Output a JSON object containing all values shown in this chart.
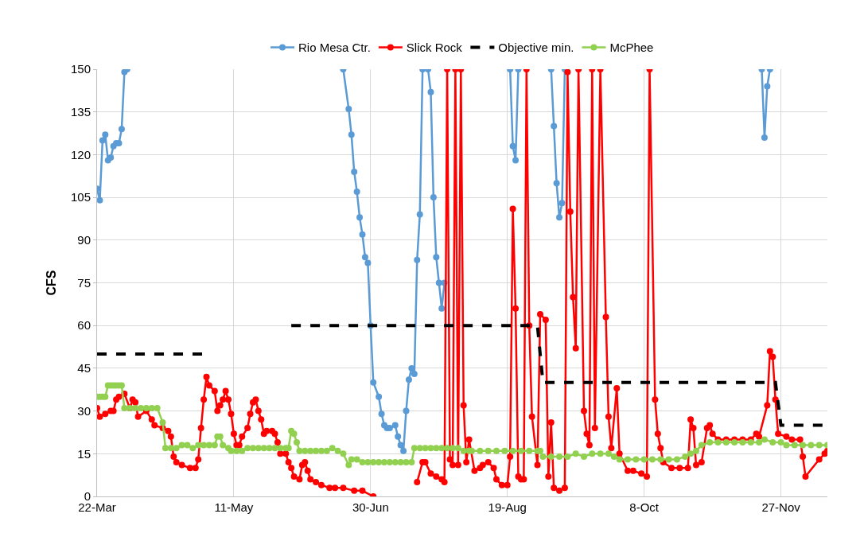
{
  "chart_data": {
    "type": "line",
    "ylabel": "CFS",
    "grid": true,
    "legend": "top",
    "xlim": [
      "--03-22",
      "--12-14"
    ],
    "xticks": [
      {
        "value": "--03-22",
        "label": "22-Mar"
      },
      {
        "value": "--05-11",
        "label": "11-May"
      },
      {
        "value": "--06-30",
        "label": "30-Jun"
      },
      {
        "value": "--08-19",
        "label": "19-Aug"
      },
      {
        "value": "--10-08",
        "label": "8-Oct"
      },
      {
        "value": "--11-27",
        "label": "27-Nov"
      }
    ],
    "ylim": [
      0,
      150
    ],
    "yticks": [
      0,
      15,
      30,
      45,
      60,
      75,
      90,
      105,
      120,
      135,
      150
    ],
    "series": [
      {
        "name": "Rio Mesa Ctr.",
        "color": "#5b9bd5",
        "marker": "circle",
        "line_style": "solid",
        "x": [
          "--03-22",
          "--03-23",
          "--03-24",
          "--03-25",
          "--03-26",
          "--03-27",
          "--03-28",
          "--03-29",
          "--03-30",
          "--03-31",
          "--04-01",
          "--04-02",
          "--04-03",
          "--06-20",
          "--06-22",
          "--06-23",
          "--06-24",
          "--06-25",
          "--06-26",
          "--06-27",
          "--06-28",
          "--06-29",
          "--06-30",
          "--07-01",
          "--07-03",
          "--07-04",
          "--07-05",
          "--07-06",
          "--07-07",
          "--07-09",
          "--07-10",
          "--07-11",
          "--07-12",
          "--07-13",
          "--07-14",
          "--07-15",
          "--07-16",
          "--07-17",
          "--07-18",
          "--07-19",
          "--07-20",
          "--07-21",
          "--07-22",
          "--07-23",
          "--07-24",
          "--07-25",
          "--07-26",
          "--07-27",
          "--07-28",
          "--07-29",
          "--08-20",
          "--08-21",
          "--08-22",
          "--08-23",
          "--08-24",
          "--09-04",
          "--09-05",
          "--09-06",
          "--09-07",
          "--09-08",
          "--09-09",
          "--09-10",
          "--11-20",
          "--11-21",
          "--11-22",
          "--11-23"
        ],
        "values": [
          108,
          104,
          125,
          127,
          118,
          119,
          123,
          124,
          124,
          129,
          149,
          150,
          null,
          150,
          136,
          127,
          114,
          107,
          98,
          92,
          84,
          82,
          60,
          40,
          35,
          29,
          25,
          24,
          24,
          25,
          21,
          18,
          16,
          30,
          41,
          45,
          43,
          83,
          99,
          150,
          null,
          150,
          142,
          105,
          84,
          75,
          66,
          75,
          null,
          null,
          150,
          123,
          118,
          150,
          null,
          150,
          130,
          110,
          98,
          103,
          150,
          null,
          150,
          126,
          144,
          150
        ]
      },
      {
        "name": "Slick Rock",
        "color": "#ff0000",
        "marker": "circle",
        "line_style": "solid",
        "x": [
          "--03-22",
          "--03-23",
          "--03-25",
          "--03-27",
          "--03-28",
          "--03-29",
          "--03-30",
          "--04-01",
          "--04-03",
          "--04-04",
          "--04-05",
          "--04-06",
          "--04-09",
          "--04-11",
          "--04-12",
          "--04-15",
          "--04-17",
          "--04-18",
          "--04-19",
          "--04-20",
          "--04-22",
          "--04-25",
          "--04-27",
          "--04-28",
          "--04-29",
          "--04-30",
          "--05-01",
          "--05-02",
          "--05-04",
          "--05-05",
          "--05-06",
          "--05-07",
          "--05-08",
          "--05-09",
          "--05-10",
          "--05-11",
          "--05-12",
          "--05-13",
          "--05-14",
          "--05-16",
          "--05-17",
          "--05-18",
          "--05-19",
          "--05-20",
          "--05-21",
          "--05-22",
          "--05-23",
          "--05-25",
          "--05-26",
          "--05-27",
          "--05-28",
          "--05-30",
          "--05-31",
          "--06-01",
          "--06-02",
          "--06-04",
          "--06-05",
          "--06-06",
          "--06-07",
          "--06-08",
          "--06-10",
          "--06-12",
          "--06-15",
          "--06-17",
          "--06-20",
          "--06-24",
          "--06-27",
          "--07-01",
          "--07-02",
          "--07-17",
          "--07-19",
          "--07-20",
          "--07-22",
          "--07-24",
          "--07-26",
          "--07-27",
          "--07-28",
          "--07-29",
          "--07-30",
          "--07-31",
          "--08-01",
          "--08-02",
          "--08-03",
          "--08-04",
          "--08-05",
          "--08-07",
          "--08-09",
          "--08-10",
          "--08-12",
          "--08-14",
          "--08-15",
          "--08-17",
          "--08-19",
          "--08-20",
          "--08-21",
          "--08-22",
          "--08-23",
          "--08-24",
          "--08-25",
          "--08-26",
          "--08-27",
          "--08-28",
          "--08-30",
          "--08-31",
          "--09-02",
          "--09-03",
          "--09-04",
          "--09-05",
          "--09-07",
          "--09-09",
          "--09-10",
          "--09-11",
          "--09-12",
          "--09-13",
          "--09-14",
          "--09-16",
          "--09-17",
          "--09-18",
          "--09-19",
          "--09-20",
          "--09-22",
          "--09-24",
          "--09-25",
          "--09-26",
          "--09-28",
          "--09-29",
          "--10-02",
          "--10-04",
          "--10-07",
          "--10-09",
          "--10-10",
          "--10-12",
          "--10-13",
          "--10-14",
          "--10-15",
          "--10-18",
          "--10-21",
          "--10-24",
          "--10-25",
          "--10-26",
          "--10-27",
          "--10-29",
          "--10-31",
          "--11-01",
          "--11-02",
          "--11-04",
          "--11-07",
          "--11-10",
          "--11-13",
          "--11-16",
          "--11-18",
          "--11-19",
          "--11-22",
          "--11-23",
          "--11-24",
          "--11-25",
          "--11-26",
          "--11-29",
          "--12-01",
          "--12-04",
          "--12-05",
          "--12-06",
          "--12-11",
          "--12-13",
          "--12-14"
        ],
        "values": [
          31,
          28,
          29,
          30,
          30,
          34,
          35,
          36,
          31,
          34,
          33,
          28,
          30,
          27,
          25,
          24,
          23,
          21,
          14,
          12,
          11,
          10,
          10,
          13,
          24,
          34,
          42,
          39,
          37,
          30,
          32,
          34,
          37,
          34,
          29,
          22,
          18,
          18,
          21,
          24,
          29,
          33,
          34,
          30,
          27,
          22,
          23,
          23,
          22,
          19,
          15,
          15,
          12,
          10,
          7,
          6,
          11,
          12,
          9,
          6,
          5,
          4,
          3,
          3,
          3,
          2,
          2,
          0,
          null,
          5,
          12,
          12,
          8,
          7,
          6,
          5,
          150,
          13,
          11,
          150,
          11,
          150,
          32,
          12,
          20,
          9,
          10,
          11,
          12,
          10,
          6,
          4,
          4,
          14,
          101,
          66,
          7,
          6,
          6,
          150,
          60,
          28,
          11,
          64,
          62,
          7,
          26,
          3,
          2,
          3,
          149,
          100,
          70,
          52,
          150,
          30,
          22,
          18,
          150,
          24,
          150,
          63,
          28,
          17,
          38,
          15,
          9,
          9,
          8,
          7,
          150,
          34,
          22,
          17,
          12,
          10,
          10,
          10,
          27,
          24,
          11,
          12,
          24,
          25,
          22,
          20,
          20,
          20,
          20,
          20,
          22,
          21,
          32,
          51,
          49,
          34,
          22,
          21,
          20,
          20,
          14,
          7,
          13,
          15,
          16
        ]
      },
      {
        "name": "Objective min.",
        "color": "#000000",
        "marker": "none",
        "line_style": "dashed",
        "x": [
          "--03-22",
          "--04-30",
          "--05-15",
          "--06-01",
          "--08-30",
          "--09-01",
          "--11-25",
          "--11-27",
          "--12-14"
        ],
        "values": [
          50,
          50,
          null,
          60,
          60,
          40,
          40,
          25,
          25
        ]
      },
      {
        "name": "McPhee",
        "color": "#92d050",
        "marker": "circle",
        "line_style": "solid",
        "x": [
          "--03-22",
          "--03-23",
          "--03-24",
          "--03-25",
          "--03-26",
          "--03-27",
          "--03-28",
          "--03-29",
          "--03-30",
          "--03-31",
          "--04-01",
          "--04-03",
          "--04-05",
          "--04-07",
          "--04-09",
          "--04-11",
          "--04-13",
          "--04-15",
          "--04-16",
          "--04-18",
          "--04-20",
          "--04-22",
          "--04-24",
          "--04-26",
          "--04-28",
          "--04-30",
          "--05-02",
          "--05-04",
          "--05-05",
          "--05-06",
          "--05-07",
          "--05-09",
          "--05-10",
          "--05-12",
          "--05-14",
          "--05-16",
          "--05-18",
          "--05-20",
          "--05-22",
          "--05-24",
          "--05-26",
          "--05-28",
          "--05-30",
          "--05-31",
          "--06-01",
          "--06-02",
          "--06-03",
          "--06-04",
          "--06-06",
          "--06-08",
          "--06-10",
          "--06-12",
          "--06-14",
          "--06-16",
          "--06-18",
          "--06-20",
          "--06-22",
          "--06-23",
          "--06-25",
          "--06-27",
          "--06-29",
          "--07-01",
          "--07-03",
          "--07-05",
          "--07-07",
          "--07-09",
          "--07-11",
          "--07-13",
          "--07-15",
          "--07-16",
          "--07-18",
          "--07-20",
          "--07-22",
          "--07-24",
          "--07-26",
          "--07-28",
          "--07-30",
          "--08-01",
          "--08-03",
          "--08-05",
          "--08-06",
          "--08-09",
          "--08-12",
          "--08-15",
          "--08-18",
          "--08-21",
          "--08-24",
          "--08-27",
          "--08-30",
          "--08-31",
          "--09-01",
          "--09-04",
          "--09-07",
          "--09-10",
          "--09-13",
          "--09-16",
          "--09-19",
          "--09-22",
          "--09-25",
          "--09-27",
          "--09-29",
          "--10-02",
          "--10-05",
          "--10-08",
          "--10-11",
          "--10-14",
          "--10-17",
          "--10-20",
          "--10-23",
          "--10-25",
          "--10-27",
          "--10-29",
          "--11-01",
          "--11-04",
          "--11-07",
          "--11-10",
          "--11-13",
          "--11-16",
          "--11-19",
          "--11-21",
          "--11-24",
          "--11-27",
          "--11-29",
          "--12-02",
          "--12-05",
          "--12-08",
          "--12-11",
          "--12-14"
        ],
        "values": [
          35,
          35,
          35,
          35,
          39,
          39,
          39,
          39,
          39,
          39,
          31,
          31,
          31,
          31,
          31,
          31,
          31,
          26,
          17,
          17,
          17,
          18,
          18,
          17,
          18,
          18,
          18,
          18,
          21,
          21,
          18,
          17,
          16,
          16,
          16,
          17,
          17,
          17,
          17,
          17,
          17,
          17,
          17,
          17,
          23,
          22,
          19,
          16,
          16,
          16,
          16,
          16,
          16,
          17,
          16,
          15,
          11,
          13,
          13,
          12,
          12,
          12,
          12,
          12,
          12,
          12,
          12,
          12,
          12,
          17,
          17,
          17,
          17,
          17,
          17,
          17,
          17,
          17,
          16,
          16,
          16,
          16,
          16,
          16,
          16,
          16,
          16,
          16,
          16,
          16,
          14,
          14,
          14,
          14,
          15,
          14,
          15,
          15,
          15,
          14,
          13,
          13,
          13,
          13,
          13,
          13,
          13,
          13,
          14,
          15,
          16,
          18,
          19,
          19,
          19,
          19,
          19,
          19,
          19,
          20,
          19,
          19,
          18,
          18,
          18,
          18,
          18,
          18
        ]
      }
    ]
  }
}
